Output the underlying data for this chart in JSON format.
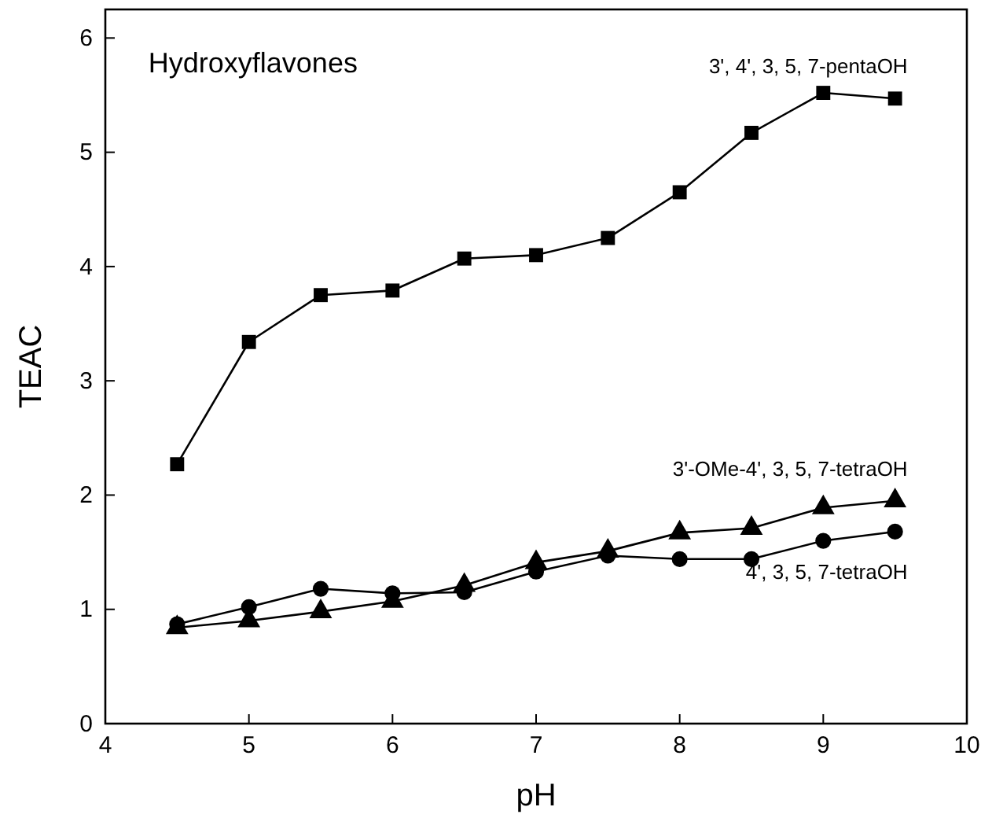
{
  "chart_data": {
    "type": "line",
    "title": "Hydroxyflavones",
    "xlabel": "pH",
    "ylabel": "TEAC",
    "x": [
      4.5,
      5,
      5.5,
      6,
      6.5,
      7,
      7.5,
      8,
      8.5,
      9,
      9.5
    ],
    "xlim": [
      4,
      10
    ],
    "xticks": [
      4,
      5,
      6,
      7,
      8,
      9,
      10
    ],
    "ylim": [
      0,
      6.25
    ],
    "yticks": [
      0,
      1,
      2,
      3,
      4,
      5,
      6
    ],
    "grid": false,
    "line_style": "solid",
    "series": [
      {
        "name": "3', 4', 3, 5, 7-pentaOH",
        "color": "#000000",
        "marker": "square",
        "values": [
          2.27,
          3.34,
          3.75,
          3.79,
          4.07,
          4.1,
          4.25,
          4.65,
          5.17,
          5.52,
          5.47
        ]
      },
      {
        "name": "3'-OMe-4', 3, 5, 7-tetraOH",
        "color": "#000000",
        "marker": "triangle",
        "values": [
          0.84,
          0.9,
          0.98,
          1.07,
          1.21,
          1.41,
          1.51,
          1.67,
          1.71,
          1.89,
          1.95
        ]
      },
      {
        "name": "4', 3, 5, 7-tetraOH",
        "color": "#000000",
        "marker": "circle",
        "values": [
          0.87,
          1.02,
          1.18,
          1.14,
          1.15,
          1.33,
          1.47,
          1.44,
          1.44,
          1.6,
          1.68
        ]
      }
    ]
  }
}
